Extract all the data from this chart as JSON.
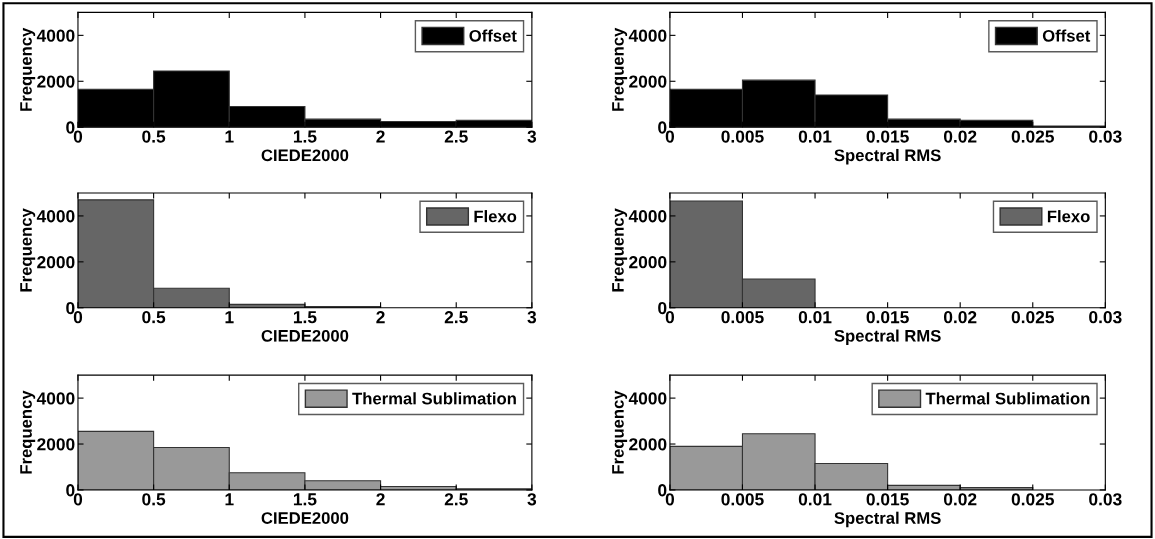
{
  "chart_data": [
    {
      "type": "histogram",
      "bins": [
        0,
        0.5,
        1,
        1.5,
        2,
        2.5,
        3
      ],
      "xlabel": "CIEDE2000",
      "ylabel": "Frequency",
      "xlim": [
        0,
        3
      ],
      "xticks": [
        0,
        0.5,
        1,
        1.5,
        2,
        2.5,
        3
      ],
      "ylim": [
        0,
        5000
      ],
      "yticks": [
        0,
        2000,
        4000
      ],
      "legend": "top right",
      "series": [
        {
          "name": "Offset",
          "color": "#000000",
          "values": [
            1650,
            2450,
            900,
            350,
            250,
            300
          ]
        }
      ]
    },
    {
      "type": "histogram",
      "bins": [
        0,
        0.005,
        0.01,
        0.015,
        0.02,
        0.025,
        0.03
      ],
      "xlabel": "Spectral RMS",
      "ylabel": "Frequency",
      "xlim": [
        0,
        0.03
      ],
      "xticks": [
        0,
        0.005,
        0.01,
        0.015,
        0.02,
        0.025,
        0.03
      ],
      "ylim": [
        0,
        5000
      ],
      "yticks": [
        0,
        2000,
        4000
      ],
      "legend": "top right",
      "series": [
        {
          "name": "Offset",
          "color": "#000000",
          "values": [
            1650,
            2050,
            1400,
            350,
            300,
            50
          ]
        }
      ]
    },
    {
      "type": "histogram",
      "bins": [
        0,
        0.5,
        1,
        1.5,
        2,
        2.5,
        3
      ],
      "xlabel": "CIEDE2000",
      "ylabel": "Frequency",
      "xlim": [
        0,
        3
      ],
      "xticks": [
        0,
        0.5,
        1,
        1.5,
        2,
        2.5,
        3
      ],
      "ylim": [
        0,
        5000
      ],
      "yticks": [
        0,
        2000,
        4000
      ],
      "legend": "top right",
      "series": [
        {
          "name": "Flexo",
          "color": "#666666",
          "values": [
            4700,
            850,
            150,
            50,
            0,
            0
          ]
        }
      ]
    },
    {
      "type": "histogram",
      "bins": [
        0,
        0.005,
        0.01,
        0.015,
        0.02,
        0.025,
        0.03
      ],
      "xlabel": "Spectral RMS",
      "ylabel": "Frequency",
      "xlim": [
        0,
        0.03
      ],
      "xticks": [
        0,
        0.005,
        0.01,
        0.015,
        0.02,
        0.025,
        0.03
      ],
      "ylim": [
        0,
        5000
      ],
      "yticks": [
        0,
        2000,
        4000
      ],
      "legend": "top right",
      "series": [
        {
          "name": "Flexo",
          "color": "#666666",
          "values": [
            4650,
            1250,
            0,
            0,
            0,
            0
          ]
        }
      ]
    },
    {
      "type": "histogram",
      "bins": [
        0,
        0.5,
        1,
        1.5,
        2,
        2.5,
        3
      ],
      "xlabel": "CIEDE2000",
      "ylabel": "Frequency",
      "xlim": [
        0,
        3
      ],
      "xticks": [
        0,
        0.5,
        1,
        1.5,
        2,
        2.5,
        3
      ],
      "ylim": [
        0,
        5000
      ],
      "yticks": [
        0,
        2000,
        4000
      ],
      "legend": "top right",
      "series": [
        {
          "name": "Thermal Sublimation",
          "color": "#999999",
          "values": [
            2550,
            1850,
            750,
            400,
            150,
            50
          ]
        }
      ]
    },
    {
      "type": "histogram",
      "bins": [
        0,
        0.005,
        0.01,
        0.015,
        0.02,
        0.025,
        0.03
      ],
      "xlabel": "Spectral RMS",
      "ylabel": "Frequency",
      "xlim": [
        0,
        0.03
      ],
      "xticks": [
        0,
        0.005,
        0.01,
        0.015,
        0.02,
        0.025,
        0.03
      ],
      "ylim": [
        0,
        5000
      ],
      "yticks": [
        0,
        2000,
        4000
      ],
      "legend": "top right",
      "series": [
        {
          "name": "Thermal Sublimation",
          "color": "#999999",
          "values": [
            1900,
            2450,
            1150,
            200,
            100,
            0
          ]
        }
      ]
    }
  ]
}
